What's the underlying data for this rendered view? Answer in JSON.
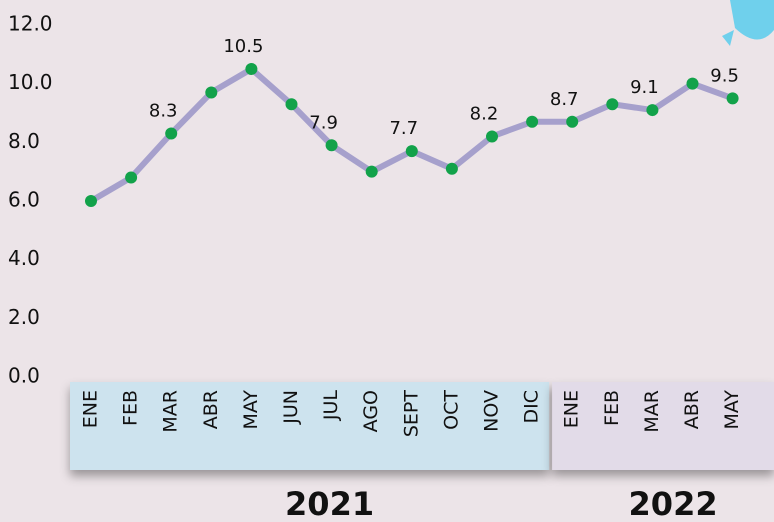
{
  "chart_data": {
    "type": "line",
    "categories": [
      "ENE",
      "FEB",
      "MAR",
      "ABR",
      "MAY",
      "JUN",
      "JUL",
      "AGO",
      "SEPT",
      "OCT",
      "NOV",
      "DIC",
      "ENE",
      "FEB",
      "MAR",
      "ABR",
      "MAY"
    ],
    "groups": [
      {
        "label": "2021",
        "span": 12,
        "color": "#cde3ee"
      },
      {
        "label": "2022",
        "span": 5,
        "color": "#e2dbe8"
      }
    ],
    "series": [
      {
        "color": "#a6a0cc",
        "marker_color": "#12a24a",
        "values": [
          6.0,
          6.8,
          8.3,
          9.7,
          10.5,
          9.3,
          7.9,
          7.0,
          7.7,
          7.1,
          8.2,
          8.7,
          8.7,
          9.3,
          9.1,
          10.0,
          9.5
        ],
        "value_labels": [
          null,
          null,
          "8.3",
          null,
          "10.5",
          null,
          "7.9",
          null,
          "7.7",
          null,
          "8.2",
          null,
          "8.7",
          null,
          "9.1",
          null,
          "9.5"
        ]
      }
    ],
    "ylim": [
      0,
      12
    ],
    "yticks": [
      {
        "value": 0,
        "label": "0.0"
      },
      {
        "value": 2,
        "label": "2.0"
      },
      {
        "value": 4,
        "label": "4.0"
      },
      {
        "value": 6,
        "label": "6.0"
      },
      {
        "value": 8,
        "label": "8.0"
      },
      {
        "value": 10,
        "label": "10.0"
      },
      {
        "value": 12,
        "label": "12.0"
      }
    ],
    "grid": false
  }
}
